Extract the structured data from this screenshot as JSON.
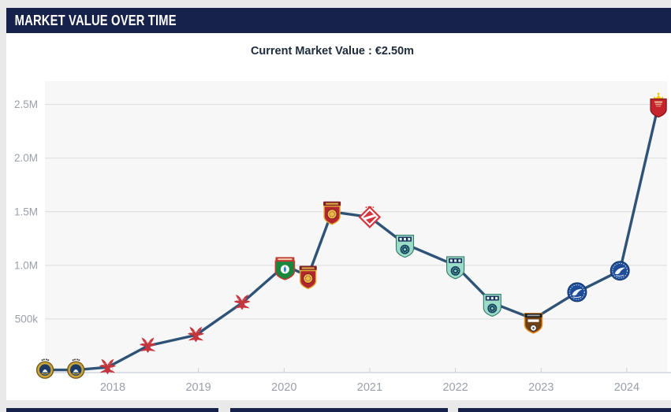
{
  "header": {
    "title": "MARKET VALUE OVER TIME"
  },
  "chart": {
    "subtitle": "Current Market Value : €2.50m"
  },
  "colors": {
    "header_bg": "#16224a",
    "card_bg": "#ffffff",
    "page_bg": "#e9e9e9",
    "plot_bg": "#f7f7f7",
    "gridline": "#dcdcdc",
    "axis_line": "#c8cfd8",
    "axis_label": "#99a0aa",
    "line": "#2f5377"
  },
  "chart_data": {
    "type": "line",
    "title": "Current Market Value : €2.50m",
    "series_name": "Market value",
    "legend": "off",
    "grid": "horizontal-only",
    "xlabel": "",
    "ylabel": "",
    "xlim": [
      2017.209,
      2024.47
    ],
    "ylim": [
      0,
      2718000
    ],
    "x_ticks": [
      {
        "label": "2018",
        "value": 2018
      },
      {
        "label": "2019",
        "value": 2019
      },
      {
        "label": "2020",
        "value": 2020
      },
      {
        "label": "2021",
        "value": 2021
      },
      {
        "label": "2022",
        "value": 2022
      },
      {
        "label": "2023",
        "value": 2023
      },
      {
        "label": "2024",
        "value": 2024
      }
    ],
    "y_ticks": [
      {
        "label": "500k",
        "value": 500000
      },
      {
        "label": "1.0M",
        "value": 1000000
      },
      {
        "label": "1.5M",
        "value": 1500000
      },
      {
        "label": "2.0M",
        "value": 2000000
      },
      {
        "label": "2.5M",
        "value": 2500000
      }
    ],
    "points": [
      {
        "x": 2017.21,
        "value": 25000,
        "label": "€25k",
        "crest": "gold-circle-crest"
      },
      {
        "x": 2017.57,
        "value": 25000,
        "label": "€25k",
        "crest": "gold-circle-crest"
      },
      {
        "x": 2017.94,
        "value": 50000,
        "label": "€50k",
        "crest": "red-eagle-crest"
      },
      {
        "x": 2018.41,
        "value": 250000,
        "label": "€250k",
        "crest": "red-eagle-crest"
      },
      {
        "x": 2018.97,
        "value": 350000,
        "label": "€350k",
        "crest": "red-eagle-crest"
      },
      {
        "x": 2019.51,
        "value": 650000,
        "label": "€650k",
        "crest": "red-eagle-crest"
      },
      {
        "x": 2020.01,
        "value": 1000000,
        "label": "€1.00m",
        "crest": "green-shield-crest"
      },
      {
        "x": 2020.28,
        "value": 900000,
        "label": "€900k",
        "crest": "red-gold-shield-crest"
      },
      {
        "x": 2020.56,
        "value": 1500000,
        "label": "€1.50m",
        "crest": "red-gold-shield-crest"
      },
      {
        "x": 2021.0,
        "value": 1450000,
        "label": "€1.45m",
        "crest": "red-diamond-crest"
      },
      {
        "x": 2021.41,
        "value": 1200000,
        "label": "€1.20m",
        "crest": "teal-shield-crest"
      },
      {
        "x": 2022.0,
        "value": 1000000,
        "label": "€1.00m",
        "crest": "teal-shield-crest"
      },
      {
        "x": 2022.43,
        "value": 650000,
        "label": "€650k",
        "crest": "teal-shield-crest"
      },
      {
        "x": 2022.91,
        "value": 500000,
        "label": "€500k",
        "crest": "brown-shield-crest"
      },
      {
        "x": 2023.42,
        "value": 750000,
        "label": "€750k",
        "crest": "blue-circle-crest"
      },
      {
        "x": 2023.92,
        "value": 950000,
        "label": "€950k",
        "crest": "blue-circle-crest"
      },
      {
        "x": 2024.37,
        "value": 2500000,
        "label": "€2.50m",
        "crest": "red-crown-shield-crest"
      }
    ]
  }
}
